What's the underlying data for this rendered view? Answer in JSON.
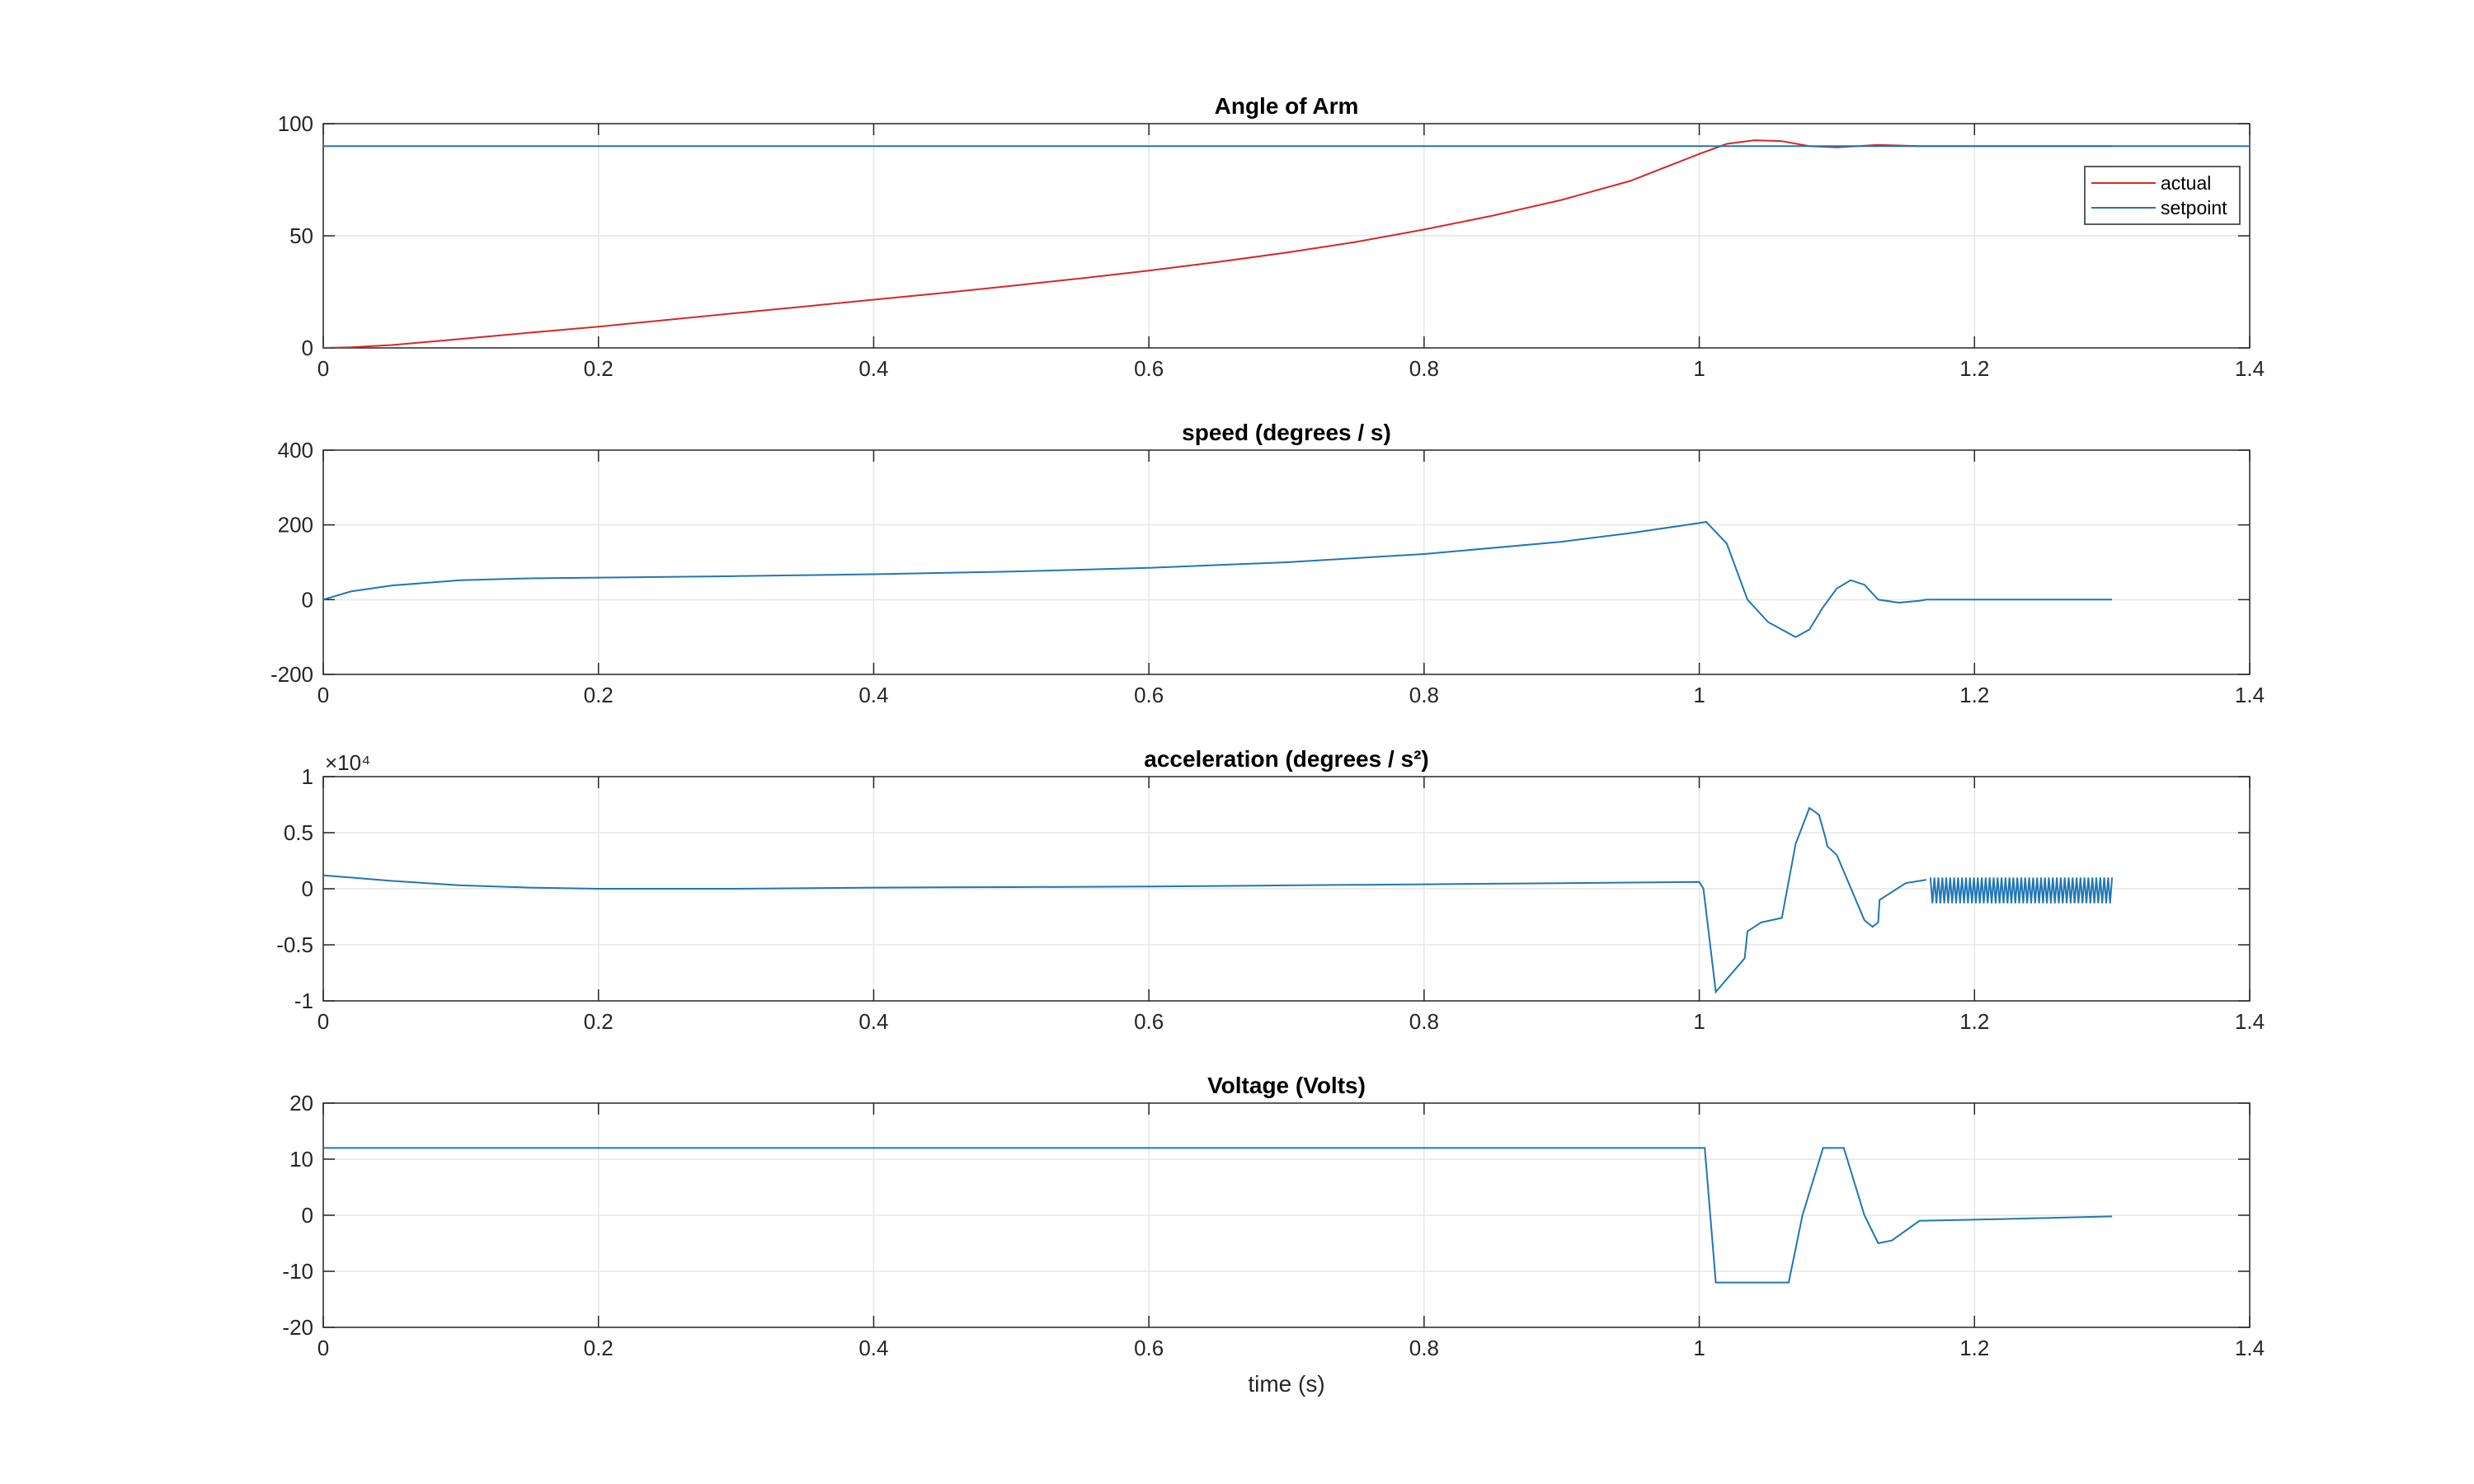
{
  "chart_data": [
    {
      "type": "line",
      "title": "Angle of Arm",
      "xlabel": "",
      "ylabel": "",
      "xlim": [
        0,
        1.4
      ],
      "ylim": [
        0,
        100
      ],
      "xticks": [
        "0",
        "0.2",
        "0.4",
        "0.6",
        "0.8",
        "1",
        "1.2",
        "1.4"
      ],
      "yticks": [
        "0",
        "50",
        "100"
      ],
      "grid": true,
      "legend": "top-right",
      "series": [
        {
          "name": "actual",
          "color": "#d62728",
          "x": [
            0,
            0.02,
            0.05,
            0.1,
            0.15,
            0.2,
            0.25,
            0.3,
            0.35,
            0.4,
            0.45,
            0.5,
            0.55,
            0.6,
            0.65,
            0.7,
            0.75,
            0.8,
            0.85,
            0.9,
            0.95,
            1.0,
            1.02,
            1.04,
            1.06,
            1.08,
            1.1,
            1.13,
            1.16,
            1.2,
            1.3
          ],
          "y": [
            0,
            0.3,
            1.3,
            4.0,
            6.8,
            9.5,
            12.5,
            15.5,
            18.5,
            21.5,
            24.5,
            27.7,
            31.0,
            34.5,
            38.3,
            42.5,
            47.2,
            52.8,
            59.0,
            66.0,
            74.5,
            86.5,
            91.0,
            92.6,
            92.2,
            90.0,
            89.4,
            90.5,
            90.0,
            90.0,
            90.0
          ]
        },
        {
          "name": "setpoint",
          "color": "#1f77b4",
          "x": [
            0,
            1.4
          ],
          "y": [
            90,
            90
          ]
        }
      ]
    },
    {
      "type": "line",
      "title": "speed (degrees / s)",
      "xlabel": "",
      "ylabel": "",
      "xlim": [
        0,
        1.4
      ],
      "ylim": [
        -200,
        400
      ],
      "xticks": [
        "0",
        "0.2",
        "0.4",
        "0.6",
        "0.8",
        "1",
        "1.2",
        "1.4"
      ],
      "yticks": [
        "-200",
        "0",
        "200",
        "400"
      ],
      "grid": true,
      "series": [
        {
          "color": "#1f77b4",
          "x": [
            0,
            0.02,
            0.05,
            0.1,
            0.15,
            0.2,
            0.3,
            0.4,
            0.5,
            0.6,
            0.7,
            0.8,
            0.9,
            0.95,
            1.0,
            1.005,
            1.02,
            1.035,
            1.05,
            1.07,
            1.08,
            1.09,
            1.1,
            1.11,
            1.12,
            1.13,
            1.145,
            1.16,
            1.165,
            1.2,
            1.3
          ],
          "y": [
            0,
            22,
            38,
            52,
            57,
            59,
            63,
            68,
            75,
            85,
            100,
            122,
            155,
            178,
            205,
            208,
            150,
            0,
            -60,
            -100,
            -80,
            -20,
            30,
            52,
            40,
            0,
            -8,
            -3,
            0,
            0,
            0
          ]
        }
      ]
    },
    {
      "type": "line",
      "title": "acceleration (degrees / s²)",
      "exponent_label": "×10⁴",
      "xlabel": "",
      "ylabel": "",
      "xlim": [
        0,
        1.4
      ],
      "ylim": [
        -1,
        1
      ],
      "xticks": [
        "0",
        "0.2",
        "0.4",
        "0.6",
        "0.8",
        "1",
        "1.2",
        "1.4"
      ],
      "yticks": [
        "-1",
        "-0.5",
        "0",
        "0.5",
        "1"
      ],
      "grid": true,
      "series": [
        {
          "color": "#1f77b4",
          "x": [
            0,
            0.02,
            0.05,
            0.1,
            0.15,
            0.2,
            0.3,
            0.4,
            0.5,
            0.6,
            0.7,
            0.8,
            0.9,
            1.0,
            1.003,
            1.012,
            1.033,
            1.035,
            1.045,
            1.06,
            1.07,
            1.08,
            1.087,
            1.092,
            1.093,
            1.1,
            1.12,
            1.126,
            1.13,
            1.131,
            1.15,
            1.165
          ],
          "y": [
            0.12,
            0.1,
            0.07,
            0.03,
            0.01,
            0.0,
            0.0,
            0.01,
            0.015,
            0.02,
            0.03,
            0.04,
            0.05,
            0.06,
            0.0,
            -0.92,
            -0.62,
            -0.38,
            -0.3,
            -0.26,
            0.4,
            0.72,
            0.66,
            0.44,
            0.38,
            0.3,
            -0.28,
            -0.34,
            -0.3,
            -0.1,
            0.05,
            0.08
          ]
        }
      ],
      "oscillation": {
        "x_start": 1.168,
        "x_end": 1.3,
        "y_min": -0.13,
        "y_max": 0.1
      }
    },
    {
      "type": "line",
      "title": "Voltage (Volts)",
      "xlabel": "time (s)",
      "ylabel": "",
      "xlim": [
        0,
        1.4
      ],
      "ylim": [
        -20,
        20
      ],
      "xticks": [
        "0",
        "0.2",
        "0.4",
        "0.6",
        "0.8",
        "1",
        "1.2",
        "1.4"
      ],
      "yticks": [
        "-20",
        "-10",
        "0",
        "10",
        "20"
      ],
      "grid": true,
      "series": [
        {
          "color": "#1f77b4",
          "x": [
            0,
            1.0,
            1.004,
            1.012,
            1.065,
            1.075,
            1.09,
            1.105,
            1.12,
            1.13,
            1.14,
            1.16,
            1.2,
            1.3
          ],
          "y": [
            12,
            12,
            12,
            -12,
            -12,
            0,
            12,
            12,
            0,
            -5,
            -4.5,
            -1,
            -0.8,
            -0.2
          ]
        }
      ]
    }
  ]
}
